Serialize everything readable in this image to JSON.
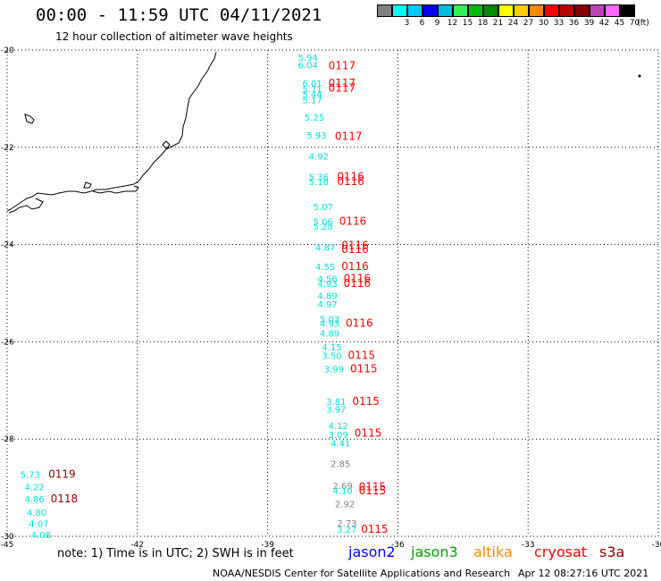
{
  "header": {
    "title": "00:00 - 11:59 UTC 04/11/2021",
    "subtitle": "12 hour collection of altimeter wave heights"
  },
  "legend": {
    "unit": "(ft)",
    "bins": [
      {
        "label": "",
        "color": "#808080"
      },
      {
        "label": "3",
        "color": "#00ffff"
      },
      {
        "label": "6",
        "color": "#00c8ff"
      },
      {
        "label": "9",
        "color": "#0000ff"
      },
      {
        "label": "12",
        "color": "#00bbdd"
      },
      {
        "label": "15",
        "color": "#33ee55"
      },
      {
        "label": "18",
        "color": "#00bb00"
      },
      {
        "label": "21",
        "color": "#008800"
      },
      {
        "label": "24",
        "color": "#ffff00"
      },
      {
        "label": "27",
        "color": "#ffcc00"
      },
      {
        "label": "30",
        "color": "#ff8800"
      },
      {
        "label": "33",
        "color": "#ff0000"
      },
      {
        "label": "36",
        "color": "#bb0000"
      },
      {
        "label": "39",
        "color": "#880000"
      },
      {
        "label": "42",
        "color": "#bb44bb"
      },
      {
        "label": "45",
        "color": "#ff66ff"
      },
      {
        "label": "70",
        "color": "#000000"
      }
    ]
  },
  "axes": {
    "lon_ticks": [
      "-45",
      "-42",
      "-39",
      "-36",
      "-33",
      "-30"
    ],
    "lat_ticks": [
      "-20",
      "-22",
      "-24",
      "-26",
      "-28",
      "-30"
    ],
    "lon_range": [
      -45,
      -30
    ],
    "lat_range": [
      -30,
      -20
    ]
  },
  "colors": {
    "cyan": "#00e0e0",
    "gray": "#808080",
    "red": "#ff0000",
    "darkred": "#880000",
    "grid": "#000000"
  },
  "observations": [
    {
      "lon": -38.3,
      "lat": -20.15,
      "text": "5.94",
      "color": "cyan"
    },
    {
      "lon": -38.3,
      "lat": -20.3,
      "text": "6.04",
      "color": "cyan"
    },
    {
      "lon": -37.6,
      "lat": -20.32,
      "text": "0117",
      "color": "red"
    },
    {
      "lon": -38.2,
      "lat": -20.68,
      "text": "6.01",
      "color": "cyan"
    },
    {
      "lon": -37.6,
      "lat": -20.68,
      "text": "0117",
      "color": "red"
    },
    {
      "lon": -38.2,
      "lat": -20.8,
      "text": "5.71",
      "color": "cyan"
    },
    {
      "lon": -37.6,
      "lat": -20.78,
      "text": "0117",
      "color": "red"
    },
    {
      "lon": -38.2,
      "lat": -20.9,
      "text": "5.44",
      "color": "cyan"
    },
    {
      "lon": -38.2,
      "lat": -21.02,
      "text": "5.17",
      "color": "cyan"
    },
    {
      "lon": -38.15,
      "lat": -21.38,
      "text": "5.25",
      "color": "cyan"
    },
    {
      "lon": -38.1,
      "lat": -21.75,
      "text": "5.93",
      "color": "cyan"
    },
    {
      "lon": -37.45,
      "lat": -21.77,
      "text": "0117",
      "color": "red"
    },
    {
      "lon": -38.05,
      "lat": -22.18,
      "text": "4.92",
      "color": "cyan"
    },
    {
      "lon": -38.05,
      "lat": -22.6,
      "text": "5.36",
      "color": "cyan"
    },
    {
      "lon": -37.4,
      "lat": -22.6,
      "text": "0116",
      "color": "red"
    },
    {
      "lon": -38.05,
      "lat": -22.7,
      "text": "5.18",
      "color": "cyan"
    },
    {
      "lon": -37.4,
      "lat": -22.7,
      "text": "0116",
      "color": "red"
    },
    {
      "lon": -37.95,
      "lat": -23.22,
      "text": "5.07",
      "color": "cyan"
    },
    {
      "lon": -37.95,
      "lat": -23.52,
      "text": "5.06",
      "color": "cyan"
    },
    {
      "lon": -37.35,
      "lat": -23.52,
      "text": "0116",
      "color": "red"
    },
    {
      "lon": -37.95,
      "lat": -23.62,
      "text": "5.28",
      "color": "cyan"
    },
    {
      "lon": -37.9,
      "lat": -24.05,
      "text": "4.87",
      "color": "cyan"
    },
    {
      "lon": -37.3,
      "lat": -24.02,
      "text": "0116",
      "color": "red"
    },
    {
      "lon": -37.3,
      "lat": -24.1,
      "text": "0116",
      "color": "red"
    },
    {
      "lon": -37.9,
      "lat": -24.45,
      "text": "4.55",
      "color": "cyan"
    },
    {
      "lon": -37.3,
      "lat": -24.45,
      "text": "0116",
      "color": "red"
    },
    {
      "lon": -37.85,
      "lat": -24.7,
      "text": "4.56",
      "color": "cyan"
    },
    {
      "lon": -37.25,
      "lat": -24.7,
      "text": "0116",
      "color": "red"
    },
    {
      "lon": -37.85,
      "lat": -24.8,
      "text": "4.93",
      "color": "cyan"
    },
    {
      "lon": -37.25,
      "lat": -24.8,
      "text": "0116",
      "color": "red"
    },
    {
      "lon": -37.85,
      "lat": -25.05,
      "text": "4.89",
      "color": "cyan"
    },
    {
      "lon": -37.85,
      "lat": -25.22,
      "text": "4.97",
      "color": "cyan"
    },
    {
      "lon": -37.8,
      "lat": -25.52,
      "text": "5.03",
      "color": "cyan"
    },
    {
      "lon": -37.8,
      "lat": -25.62,
      "text": "4.93",
      "color": "cyan"
    },
    {
      "lon": -37.2,
      "lat": -25.62,
      "text": "0116",
      "color": "red"
    },
    {
      "lon": -37.8,
      "lat": -25.82,
      "text": "4.89",
      "color": "cyan"
    },
    {
      "lon": -37.75,
      "lat": -26.1,
      "text": "4.15",
      "color": "cyan"
    },
    {
      "lon": -37.75,
      "lat": -26.28,
      "text": "3.50",
      "color": "cyan"
    },
    {
      "lon": -37.15,
      "lat": -26.28,
      "text": "0115",
      "color": "red"
    },
    {
      "lon": -37.7,
      "lat": -26.55,
      "text": "3.99",
      "color": "cyan"
    },
    {
      "lon": -37.1,
      "lat": -26.55,
      "text": "0115",
      "color": "red"
    },
    {
      "lon": -37.65,
      "lat": -27.22,
      "text": "3.81",
      "color": "cyan"
    },
    {
      "lon": -37.05,
      "lat": -27.22,
      "text": "0115",
      "color": "red"
    },
    {
      "lon": -37.65,
      "lat": -27.38,
      "text": "3.97",
      "color": "cyan"
    },
    {
      "lon": -37.6,
      "lat": -27.72,
      "text": "4.12",
      "color": "cyan"
    },
    {
      "lon": -37.6,
      "lat": -27.9,
      "text": "3.09",
      "color": "cyan"
    },
    {
      "lon": -37.0,
      "lat": -27.88,
      "text": "0115",
      "color": "red"
    },
    {
      "lon": -37.55,
      "lat": -28.08,
      "text": "4.41",
      "color": "cyan"
    },
    {
      "lon": -37.55,
      "lat": -28.5,
      "text": "2.85",
      "color": "gray"
    },
    {
      "lon": -37.5,
      "lat": -28.95,
      "text": "2.69",
      "color": "gray"
    },
    {
      "lon": -37.5,
      "lat": -29.05,
      "text": "4.10",
      "color": "cyan"
    },
    {
      "lon": -36.9,
      "lat": -28.98,
      "text": "0115",
      "color": "red"
    },
    {
      "lon": -36.9,
      "lat": -29.06,
      "text": "0115",
      "color": "red"
    },
    {
      "lon": -37.45,
      "lat": -29.33,
      "text": "2.92",
      "color": "gray"
    },
    {
      "lon": -37.4,
      "lat": -29.72,
      "text": "2.73",
      "color": "gray"
    },
    {
      "lon": -37.4,
      "lat": -29.85,
      "text": "3.27",
      "color": "cyan"
    },
    {
      "lon": -36.85,
      "lat": -29.85,
      "text": "0115",
      "color": "red"
    },
    {
      "lon": -44.7,
      "lat": -28.72,
      "text": "5.73",
      "color": "cyan"
    },
    {
      "lon": -44.05,
      "lat": -28.72,
      "text": "0119",
      "color": "darkred"
    },
    {
      "lon": -44.6,
      "lat": -28.98,
      "text": "4.22",
      "color": "cyan"
    },
    {
      "lon": -44.6,
      "lat": -29.23,
      "text": "4.86",
      "color": "cyan"
    },
    {
      "lon": -44.0,
      "lat": -29.23,
      "text": "0118",
      "color": "darkred"
    },
    {
      "lon": -44.55,
      "lat": -29.5,
      "text": "4.80",
      "color": "cyan"
    },
    {
      "lon": -44.5,
      "lat": -29.73,
      "text": "4.07",
      "color": "cyan"
    },
    {
      "lon": -44.45,
      "lat": -29.96,
      "text": "4.08",
      "color": "cyan"
    }
  ],
  "footer": {
    "note": "note:  1) Time is in UTC; 2) SWH is in feet",
    "satellites": [
      {
        "name": "jason2",
        "color": "#0000ff"
      },
      {
        "name": "jason3",
        "color": "#00a000"
      },
      {
        "name": "altika",
        "color": "#ff8800"
      },
      {
        "name": "cryosat",
        "color": "#ff0000"
      },
      {
        "name": "s3a",
        "color": "#880000"
      }
    ],
    "credit": "NOAA/NESDIS Center for Satellite Applications and Research",
    "date": "Apr 12 08:27:16 UTC 2021"
  }
}
